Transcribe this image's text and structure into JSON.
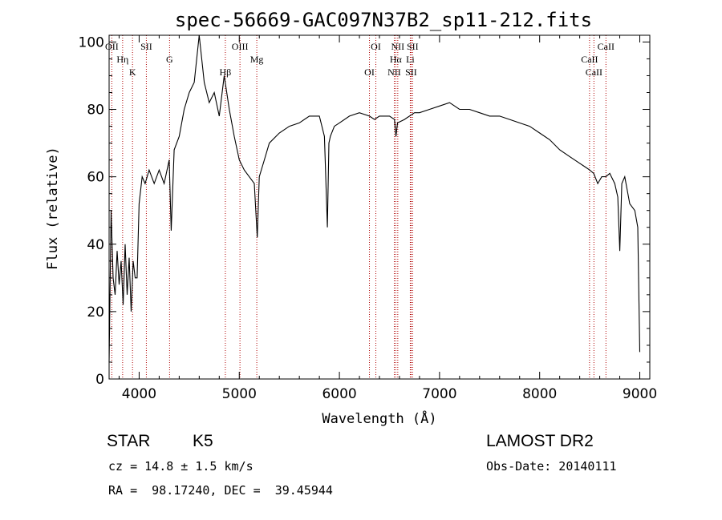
{
  "chart_data": {
    "type": "line",
    "title": "spec-56669-GAC097N37B2_sp11-212.fits",
    "xlabel": "Wavelength (Å)",
    "ylabel": "Flux (relative)",
    "xlim": [
      3700,
      9100
    ],
    "ylim": [
      0,
      102
    ],
    "xticks": [
      4000,
      5000,
      6000,
      7000,
      8000,
      9000
    ],
    "yticks": [
      0,
      20,
      40,
      60,
      80,
      100
    ],
    "grid": false,
    "line_color": "#000000",
    "marker_color": "#b00000",
    "series": [
      {
        "x": [
          3700,
          3720,
          3740,
          3760,
          3780,
          3800,
          3820,
          3840,
          3860,
          3880,
          3900,
          3920,
          3940,
          3960,
          3980,
          4000,
          4030,
          4060,
          4100,
          4150,
          4200,
          4250,
          4300,
          4320,
          4350,
          4400,
          4450,
          4500,
          4550,
          4600,
          4650,
          4700,
          4750,
          4800,
          4850,
          4900,
          4950,
          5000,
          5050,
          5100,
          5150,
          5180,
          5200,
          5250,
          5300,
          5400,
          5500,
          5600,
          5700,
          5800,
          5850,
          5880,
          5895,
          5910,
          5950,
          6000,
          6100,
          6200,
          6300,
          6350,
          6400,
          6450,
          6500,
          6550,
          6565,
          6580,
          6650,
          6700,
          6750,
          6800,
          6900,
          7000,
          7100,
          7200,
          7300,
          7400,
          7500,
          7600,
          7700,
          7800,
          7900,
          8000,
          8100,
          8200,
          8300,
          8400,
          8450,
          8500,
          8540,
          8580,
          8620,
          8660,
          8700,
          8750,
          8780,
          8800,
          8820,
          8850,
          8900,
          8950,
          8980,
          9000
        ],
        "y": [
          5,
          50,
          30,
          25,
          38,
          28,
          35,
          22,
          40,
          25,
          36,
          20,
          35,
          30,
          30,
          52,
          60,
          58,
          62,
          58,
          62,
          58,
          65,
          44,
          68,
          72,
          80,
          85,
          88,
          102,
          88,
          82,
          85,
          78,
          90,
          80,
          72,
          65,
          62,
          60,
          58,
          42,
          60,
          65,
          70,
          73,
          75,
          76,
          78,
          78,
          72,
          45,
          70,
          72,
          75,
          76,
          78,
          79,
          78,
          77,
          78,
          78,
          78,
          77,
          72,
          76,
          77,
          78,
          79,
          79,
          80,
          81,
          82,
          80,
          80,
          79,
          78,
          78,
          77,
          76,
          75,
          73,
          71,
          68,
          66,
          64,
          63,
          62,
          61,
          58,
          60,
          60,
          61,
          58,
          54,
          38,
          58,
          60,
          52,
          50,
          45,
          8
        ]
      }
    ],
    "spectral_lines": [
      {
        "label": "OII",
        "x": 3727
      },
      {
        "label": "Hη",
        "x": 3835
      },
      {
        "label": "K",
        "x": 3934
      },
      {
        "label": "SII",
        "x": 4072
      },
      {
        "label": "G",
        "x": 4304
      },
      {
        "label": "Hβ",
        "x": 4861
      },
      {
        "label": "OIII",
        "x": 5007
      },
      {
        "label": "Mg",
        "x": 5175
      },
      {
        "label": "OI",
        "x": 6300
      },
      {
        "label": "OI",
        "x": 6364
      },
      {
        "label": "Hα",
        "x": 6563
      },
      {
        "label": "NII",
        "x": 6548
      },
      {
        "label": "NII",
        "x": 6583
      },
      {
        "label": "Li",
        "x": 6708
      },
      {
        "label": "SII",
        "x": 6716
      },
      {
        "label": "SII",
        "x": 6731
      },
      {
        "label": "CaII",
        "x": 8498
      },
      {
        "label": "CaII",
        "x": 8542
      },
      {
        "label": "CaII",
        "x": 8662
      }
    ]
  },
  "info": {
    "class": "STAR",
    "subclass": "K5",
    "survey": "LAMOST DR2",
    "cz": "cz = 14.8 ± 1.5 km/s",
    "obs_date": "Obs-Date: 20140111",
    "radec": "RA =  98.17240, DEC =  39.45944"
  }
}
